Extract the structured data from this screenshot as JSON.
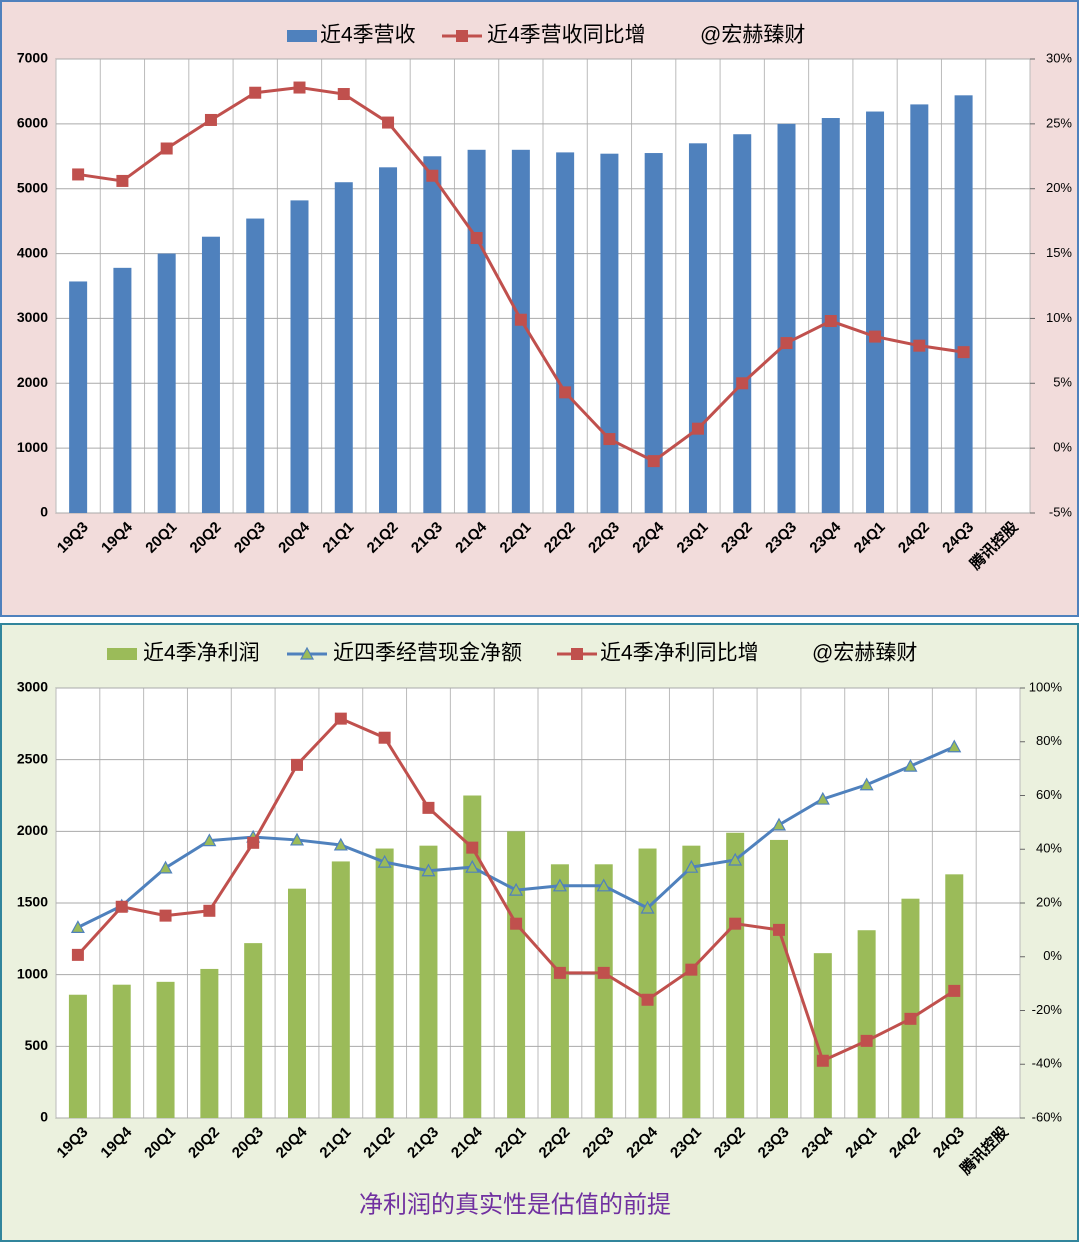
{
  "chart_data": [
    {
      "type": "combo",
      "categories": [
        "19Q3",
        "19Q4",
        "20Q1",
        "20Q2",
        "20Q3",
        "20Q4",
        "21Q1",
        "21Q2",
        "21Q3",
        "21Q4",
        "22Q1",
        "22Q2",
        "22Q3",
        "22Q4",
        "23Q1",
        "23Q2",
        "23Q3",
        "23Q4",
        "24Q1",
        "24Q2",
        "24Q3",
        "腾讯控股"
      ],
      "series": [
        {
          "name": "近4季营收",
          "type": "bar",
          "color": "#4f81bd",
          "values": [
            3570,
            3780,
            4000,
            4260,
            4540,
            4820,
            5100,
            5330,
            5500,
            5600,
            5600,
            5560,
            5540,
            5550,
            5700,
            5840,
            6000,
            6090,
            6190,
            6300,
            6440,
            null
          ]
        },
        {
          "name": "近4季营收同比增",
          "type": "line",
          "axis": "y2",
          "color": "#c0504d",
          "marker": "square",
          "values": [
            21.1,
            20.6,
            23.1,
            25.3,
            27.4,
            27.8,
            27.3,
            25.1,
            21.0,
            16.2,
            9.9,
            4.3,
            0.7,
            -1.0,
            1.5,
            5.0,
            8.1,
            9.8,
            8.6,
            7.9,
            7.4,
            null
          ]
        }
      ],
      "annotation": "@宏赫臻财",
      "ylim": [
        0,
        7000
      ],
      "yticks": [
        0,
        1000,
        2000,
        3000,
        4000,
        5000,
        6000,
        7000
      ],
      "y2lim": [
        -5,
        30
      ],
      "y2ticks": [
        {
          "value": -5,
          "label": "-5%"
        },
        {
          "value": 0,
          "label": "0%"
        },
        {
          "value": 5,
          "label": "5%"
        },
        {
          "value": 10,
          "label": "10%"
        },
        {
          "value": 15,
          "label": "15%"
        },
        {
          "value": 20,
          "label": "20%"
        },
        {
          "value": 25,
          "label": "25%"
        },
        {
          "value": 30,
          "label": "30%"
        }
      ],
      "grid": true
    },
    {
      "type": "combo",
      "categories": [
        "19Q3",
        "19Q4",
        "20Q1",
        "20Q2",
        "20Q3",
        "20Q4",
        "21Q1",
        "21Q2",
        "21Q3",
        "21Q4",
        "22Q1",
        "22Q2",
        "22Q3",
        "22Q4",
        "23Q1",
        "23Q2",
        "23Q3",
        "23Q4",
        "24Q1",
        "24Q2",
        "24Q3",
        "腾讯控股"
      ],
      "series": [
        {
          "name": "近4季净利润",
          "type": "bar",
          "color": "#9bbb59",
          "values": [
            860,
            930,
            950,
            1040,
            1220,
            1600,
            1790,
            1880,
            1900,
            2250,
            2000,
            1770,
            1770,
            1880,
            1900,
            1990,
            1940,
            1150,
            1310,
            1530,
            1700,
            null
          ]
        },
        {
          "name": "近四季经营现金净额",
          "type": "line",
          "color": "#4f81bd",
          "marker": "triangle",
          "values": [
            1330,
            1480,
            1745,
            1935,
            1960,
            1940,
            1905,
            1785,
            1725,
            1750,
            1590,
            1620,
            1620,
            1465,
            1750,
            1800,
            2045,
            2225,
            2325,
            2455,
            2590,
            null
          ]
        },
        {
          "name": "近4季净利同比增",
          "type": "line",
          "axis": "y2",
          "color": "#c0504d",
          "marker": "square",
          "values": [
            0.7,
            18.6,
            15.3,
            17.1,
            42.4,
            71.4,
            88.6,
            81.5,
            55.4,
            40.6,
            12.3,
            -6.0,
            -6.0,
            -16.0,
            -4.8,
            12.3,
            10.0,
            -38.7,
            -31.3,
            -23.1,
            -12.7,
            null
          ]
        }
      ],
      "annotation": "@宏赫臻财",
      "caption": "净利润的真实性是估值的前提",
      "ylim": [
        0,
        3000
      ],
      "yticks": [
        0,
        500,
        1000,
        1500,
        2000,
        2500,
        3000
      ],
      "y2lim": [
        -60,
        100
      ],
      "y2ticks": [
        {
          "value": -60,
          "label": "-60%"
        },
        {
          "value": -40,
          "label": "-40%"
        },
        {
          "value": -20,
          "label": "-20%"
        },
        {
          "value": 0,
          "label": "0%"
        },
        {
          "value": 20,
          "label": "20%"
        },
        {
          "value": 40,
          "label": "40%"
        },
        {
          "value": 60,
          "label": "60%"
        },
        {
          "value": 80,
          "label": "80%"
        },
        {
          "value": 100,
          "label": "100%"
        }
      ],
      "grid": true
    }
  ]
}
